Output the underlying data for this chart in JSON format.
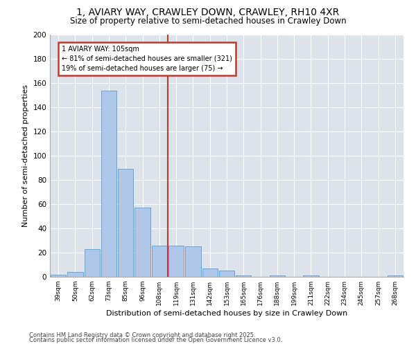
{
  "title_line1": "1, AVIARY WAY, CRAWLEY DOWN, CRAWLEY, RH10 4XR",
  "title_line2": "Size of property relative to semi-detached houses in Crawley Down",
  "xlabel": "Distribution of semi-detached houses by size in Crawley Down",
  "ylabel": "Number of semi-detached properties",
  "categories": [
    "39sqm",
    "50sqm",
    "62sqm",
    "73sqm",
    "85sqm",
    "96sqm",
    "108sqm",
    "119sqm",
    "131sqm",
    "142sqm",
    "153sqm",
    "165sqm",
    "176sqm",
    "188sqm",
    "199sqm",
    "211sqm",
    "222sqm",
    "234sqm",
    "245sqm",
    "257sqm",
    "268sqm"
  ],
  "values": [
    2,
    4,
    23,
    154,
    89,
    57,
    26,
    26,
    25,
    7,
    5,
    1,
    0,
    1,
    0,
    1,
    0,
    0,
    0,
    0,
    1
  ],
  "bar_color": "#aec6e8",
  "bar_edge_color": "#5b9bd5",
  "vline_index": 6.5,
  "vline_color": "#c0392b",
  "annotation_title": "1 AVIARY WAY: 105sqm",
  "annotation_line1": "← 81% of semi-detached houses are smaller (321)",
  "annotation_line2": "19% of semi-detached houses are larger (75) →",
  "annotation_box_color": "#c0392b",
  "ylim": [
    0,
    200
  ],
  "yticks": [
    0,
    20,
    40,
    60,
    80,
    100,
    120,
    140,
    160,
    180,
    200
  ],
  "background_color": "#dce3ea",
  "fig_background": "#ffffff",
  "footer_line1": "Contains HM Land Registry data © Crown copyright and database right 2025.",
  "footer_line2": "Contains public sector information licensed under the Open Government Licence v3.0."
}
